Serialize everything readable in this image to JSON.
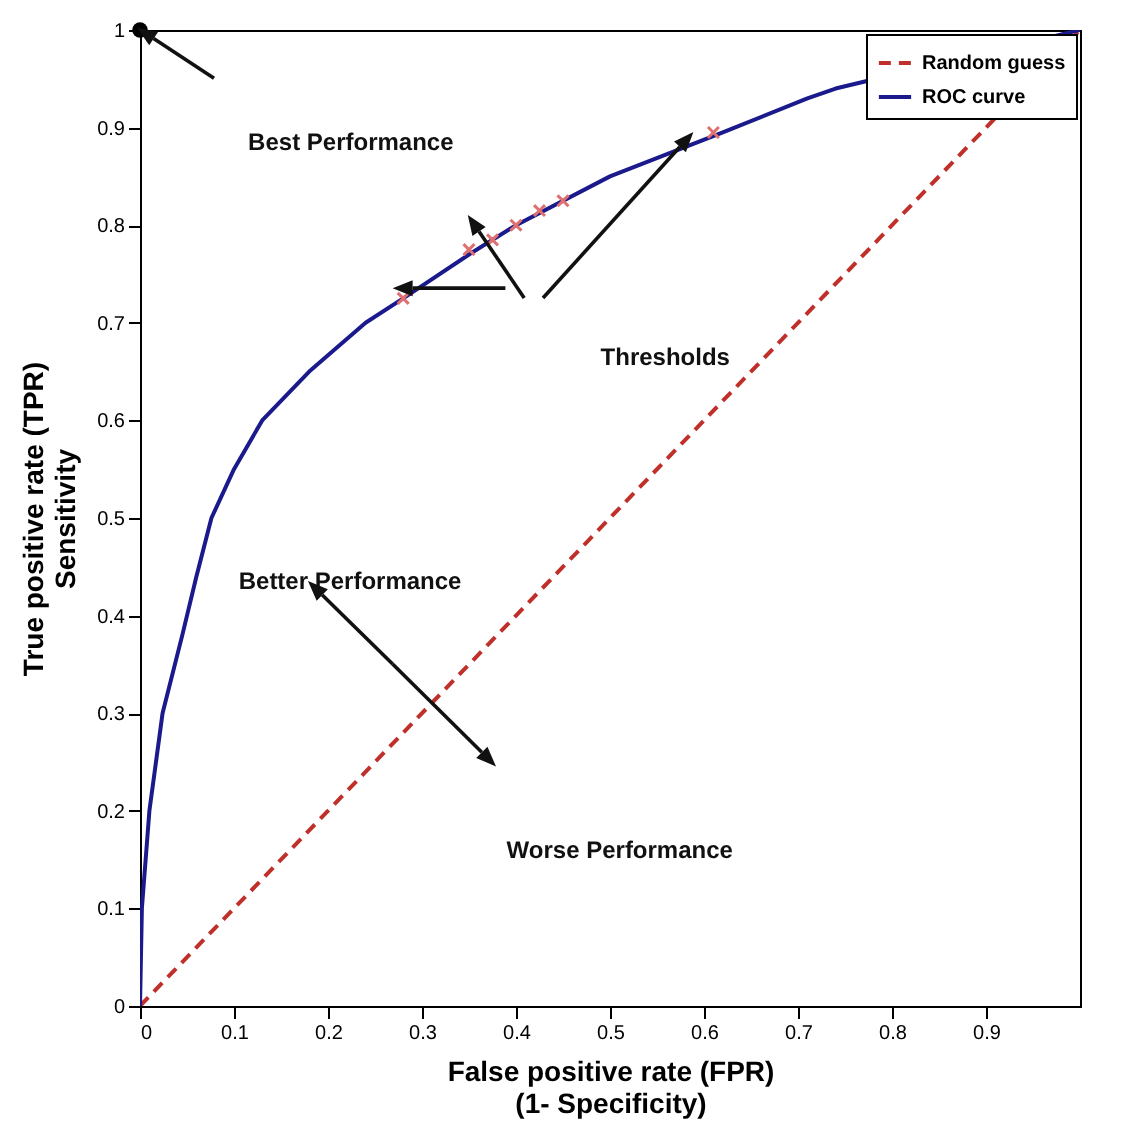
{
  "chart_data": {
    "type": "line",
    "xlabel": "False positive rate (FPR)\n(1- Specificity)",
    "ylabel": "True positive rate (TPR)\nSensitivity",
    "xlim": [
      0,
      1
    ],
    "ylim": [
      0,
      1
    ],
    "xticks": [
      0,
      0.1,
      0.2,
      0.3,
      0.4,
      0.5,
      0.6,
      0.7,
      0.8,
      0.9
    ],
    "yticks": [
      0,
      0.1,
      0.2,
      0.3,
      0.4,
      0.5,
      0.6,
      0.7,
      0.8,
      0.9,
      1
    ],
    "grid": false,
    "legend": "top right",
    "series": [
      {
        "name": "Random guess",
        "type": "line",
        "color": "#c0302a",
        "line_style": "dashed",
        "x": [
          0,
          1
        ],
        "values": [
          0,
          1
        ]
      },
      {
        "name": "ROC curve",
        "type": "line",
        "color": "#1a1a8c",
        "line_style": "solid",
        "x": [
          0,
          0.002,
          0.01,
          0.024,
          0.045,
          0.06,
          0.076,
          0.1,
          0.13,
          0.18,
          0.24,
          0.28,
          0.35,
          0.4,
          0.5,
          0.62,
          0.71,
          0.74,
          1
        ],
        "values": [
          0,
          0.1,
          0.2,
          0.3,
          0.38,
          0.44,
          0.5,
          0.55,
          0.6,
          0.65,
          0.7,
          0.725,
          0.77,
          0.8,
          0.85,
          0.895,
          0.93,
          0.94,
          1
        ]
      },
      {
        "type": "scatter",
        "color": "#e07070",
        "marker": "cross",
        "x": [
          0.28,
          0.35,
          0.375,
          0.4,
          0.425,
          0.45,
          0.61
        ],
        "values": [
          0.725,
          0.775,
          0.785,
          0.8,
          0.815,
          0.825,
          0.895
        ]
      },
      {
        "type": "scatter",
        "color": "#000000",
        "marker": "circle",
        "x": [
          0
        ],
        "values": [
          1
        ]
      }
    ],
    "annotations": [
      "Best Performance",
      "Thresholds",
      "Better Performance",
      "Worse Performance"
    ]
  }
}
